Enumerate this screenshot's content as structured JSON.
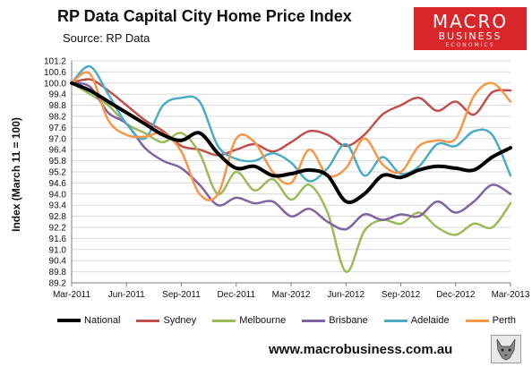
{
  "header": {
    "title": "RP Data Capital City Home Price Index",
    "subtitle": "Source: RP Data"
  },
  "logo": {
    "line1": "MACRO",
    "line2": "BUSINESS",
    "line3": "ECONOMICS",
    "color": "#d8262a"
  },
  "footer": {
    "url": "www.macrobusiness.com.au",
    "icon": "wolf-icon"
  },
  "chart_data": {
    "type": "line",
    "title": "RP Data Capital City Home Price Index",
    "ylabel": "Index (March 11 = 100)",
    "xlabel": "",
    "ylim": [
      89.2,
      101.2
    ],
    "ytick_labels": [
      "101.2",
      "100.6",
      "100.0",
      "99.4",
      "98.8",
      "98.2",
      "97.6",
      "97.0",
      "96.4",
      "95.8",
      "95.2",
      "94.6",
      "94.0",
      "93.4",
      "92.8",
      "92.2",
      "91.6",
      "91.0",
      "90.4",
      "89.8",
      "89.2"
    ],
    "xtick_labels": [
      "Mar-2011",
      "Jun-2011",
      "Sep-2011",
      "Dec-2011",
      "Mar-2012",
      "Jun-2012",
      "Sep-2012",
      "Dec-2012",
      "Mar-2013"
    ],
    "grid": true,
    "legend_position": "bottom",
    "x": [
      "2011-03",
      "2011-04",
      "2011-05",
      "2011-06",
      "2011-07",
      "2011-08",
      "2011-09",
      "2011-10",
      "2011-11",
      "2011-12",
      "2012-01",
      "2012-02",
      "2012-03",
      "2012-04",
      "2012-05",
      "2012-06",
      "2012-07",
      "2012-08",
      "2012-09",
      "2012-10",
      "2012-11",
      "2012-12",
      "2013-01",
      "2013-02",
      "2013-03"
    ],
    "series": [
      {
        "name": "National",
        "color": "#000000",
        "width": 4,
        "values": [
          100.0,
          99.6,
          99.0,
          98.4,
          97.8,
          97.2,
          96.9,
          97.3,
          96.2,
          95.4,
          95.5,
          95.0,
          95.1,
          95.3,
          95.0,
          93.6,
          94.0,
          95.0,
          94.9,
          95.3,
          95.5,
          95.4,
          95.3,
          96.0,
          96.5
        ]
      },
      {
        "name": "Sydney",
        "color": "#c0504d",
        "width": 2.5,
        "values": [
          100.0,
          100.2,
          99.6,
          98.8,
          98.0,
          97.4,
          96.6,
          96.4,
          96.1,
          96.4,
          96.7,
          96.3,
          96.8,
          97.4,
          97.2,
          96.6,
          97.2,
          98.3,
          98.8,
          99.2,
          98.5,
          99.0,
          98.3,
          99.5,
          99.6
        ]
      },
      {
        "name": "Melbourne",
        "color": "#9bbb59",
        "width": 2.5,
        "values": [
          100.0,
          99.4,
          98.8,
          97.8,
          97.3,
          96.8,
          97.3,
          96.2,
          94.0,
          95.2,
          94.2,
          94.8,
          93.7,
          94.5,
          93.0,
          89.8,
          92.0,
          92.6,
          92.4,
          93.0,
          92.2,
          91.8,
          92.4,
          92.2,
          93.5
        ]
      },
      {
        "name": "Brisbane",
        "color": "#8064a2",
        "width": 2.5,
        "values": [
          100.0,
          99.8,
          98.4,
          97.8,
          96.5,
          95.8,
          95.4,
          94.5,
          93.4,
          93.8,
          93.5,
          93.6,
          92.8,
          93.2,
          92.5,
          92.1,
          92.9,
          92.6,
          92.9,
          92.8,
          93.6,
          93.0,
          93.6,
          94.5,
          94.0
        ]
      },
      {
        "name": "Adelaide",
        "color": "#4bacc6",
        "width": 2.5,
        "values": [
          100.0,
          100.9,
          99.4,
          97.8,
          97.0,
          98.8,
          99.2,
          99.0,
          96.6,
          95.9,
          95.8,
          96.2,
          95.7,
          94.7,
          95.4,
          96.7,
          95.0,
          96.0,
          95.1,
          95.5,
          96.7,
          96.6,
          97.4,
          97.2,
          95.0
        ]
      },
      {
        "name": "Perth",
        "color": "#f79646",
        "width": 2.5,
        "values": [
          100.0,
          100.5,
          98.0,
          97.2,
          97.1,
          97.3,
          96.3,
          94.0,
          94.0,
          97.0,
          96.8,
          95.2,
          94.6,
          96.4,
          95.0,
          95.4,
          97.0,
          95.6,
          95.2,
          96.6,
          96.9,
          97.0,
          99.3,
          100.0,
          99.0
        ]
      }
    ]
  }
}
